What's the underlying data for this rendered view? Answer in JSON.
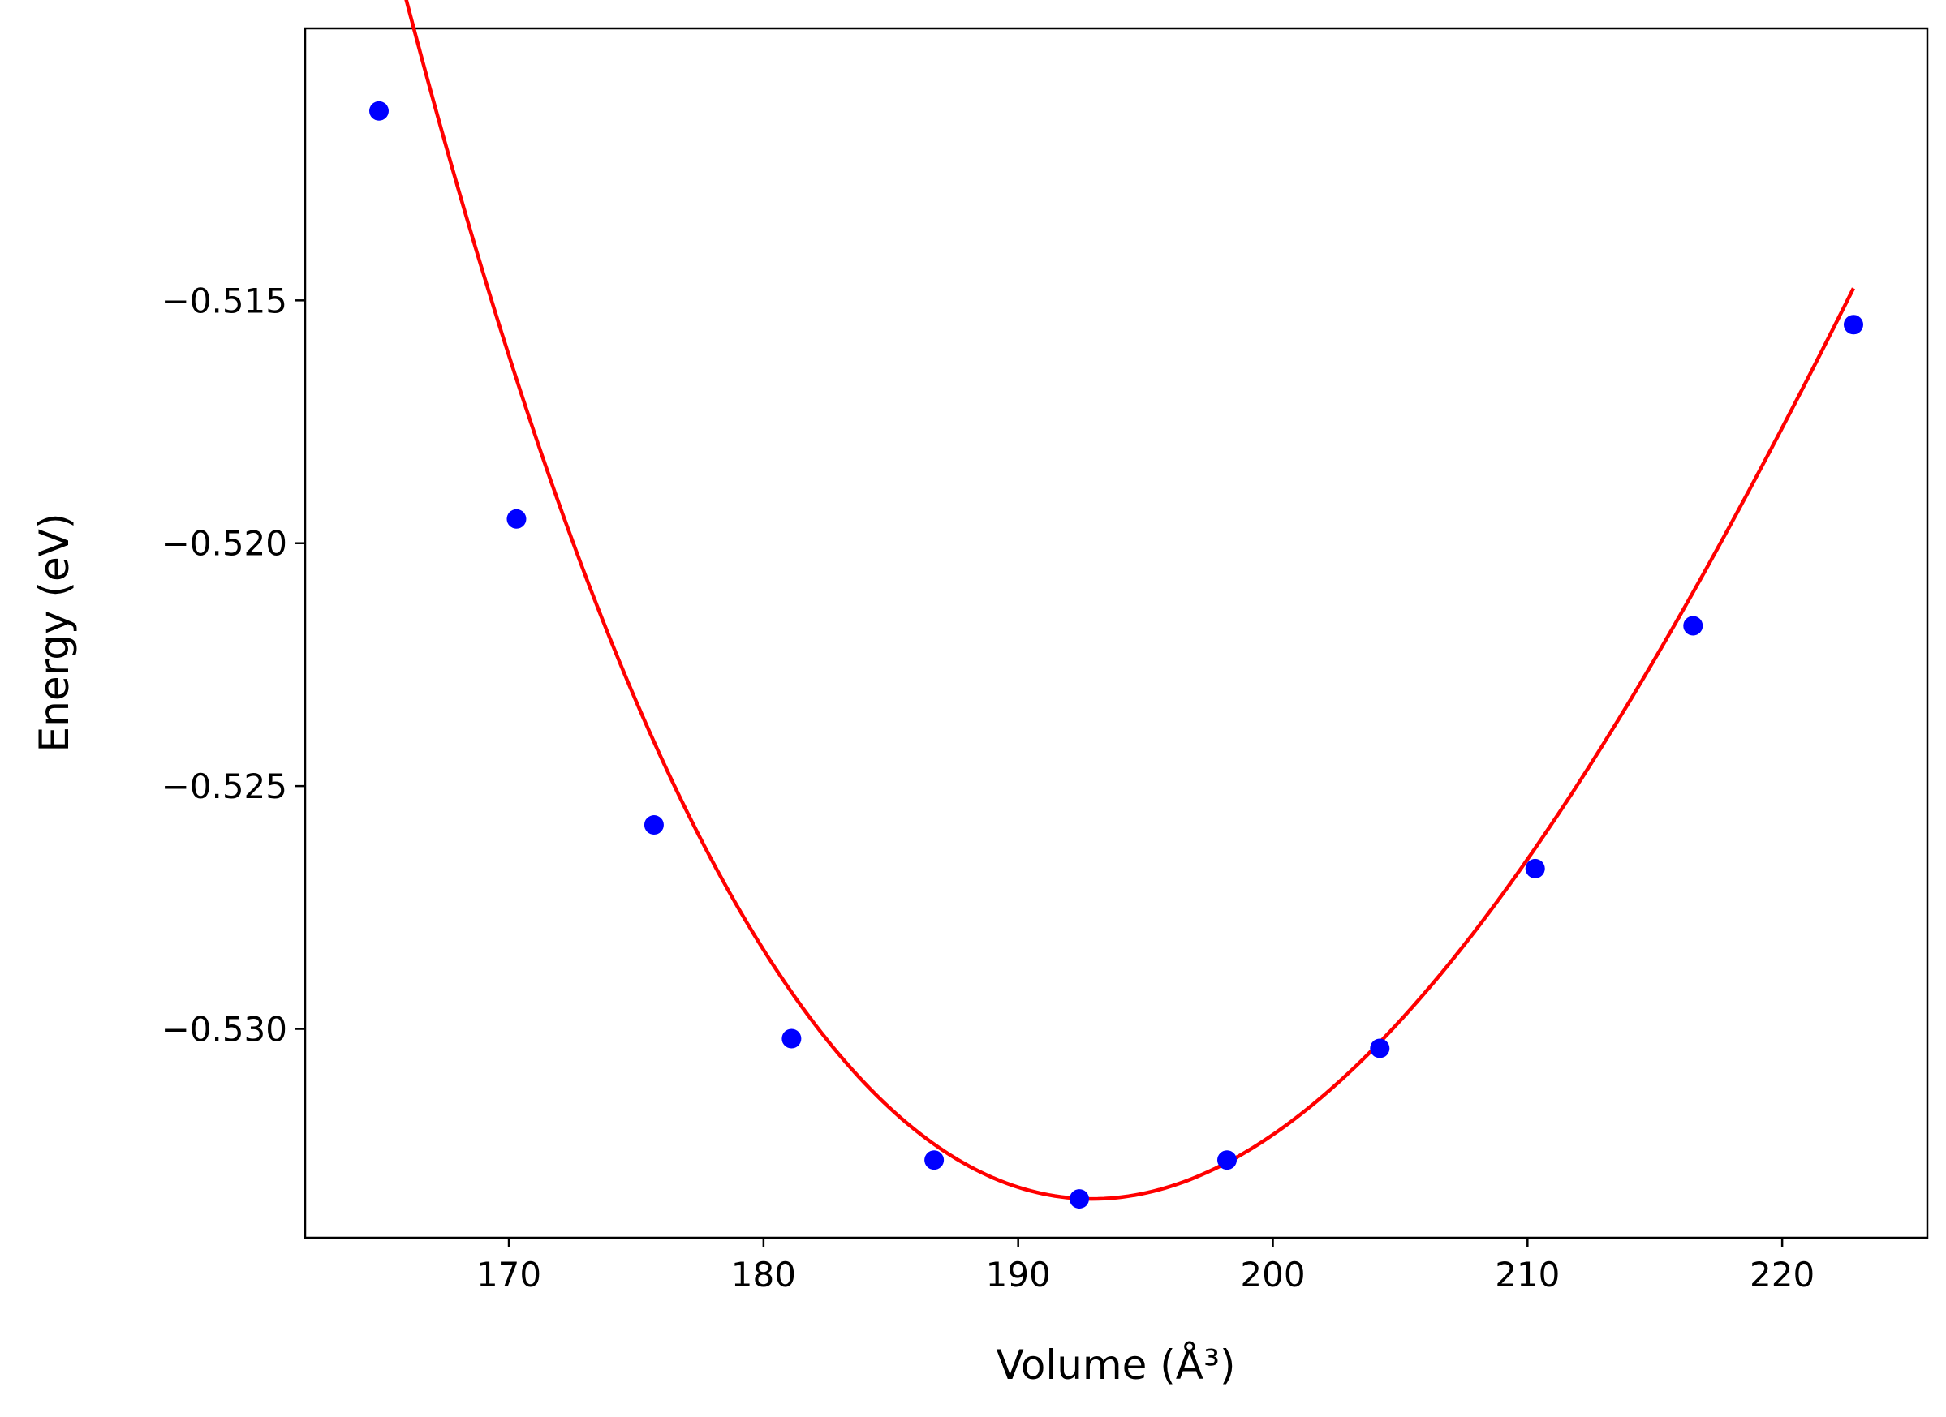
{
  "chart_data": {
    "type": "line",
    "title": "",
    "xlabel": "Volume (Å³)",
    "ylabel": "Energy (eV)",
    "xlim": [
      162.0,
      225.7
    ],
    "ylim": [
      -0.5343,
      -0.5094
    ],
    "xticks": [
      170,
      180,
      190,
      200,
      210,
      220
    ],
    "yticks": [
      -0.515,
      -0.52,
      -0.525,
      -0.53
    ],
    "grid": false,
    "legend": "none",
    "series": [
      {
        "kind": "scatter",
        "color": "#0000ff",
        "marker": "circle",
        "x": [
          164.9,
          170.3,
          175.7,
          181.1,
          186.7,
          192.4,
          198.2,
          204.2,
          210.3,
          216.5,
          222.8
        ],
        "y": [
          -0.5111,
          -0.5195,
          -0.5258,
          -0.5302,
          -0.5327,
          -0.5335,
          -0.5327,
          -0.5304,
          -0.5267,
          -0.5217,
          -0.5155
        ]
      },
      {
        "kind": "fit-curve",
        "color": "#ff0000",
        "fit": {
          "form": "quadratic-in-x-minus-x0-plus-cubic",
          "x0": 192.9,
          "y0": -0.5335,
          "a2": 2.785e-05,
          "a3": -2.3e-07
        }
      }
    ]
  }
}
